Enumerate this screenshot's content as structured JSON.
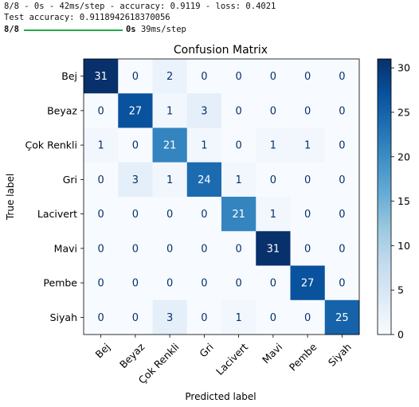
{
  "log": {
    "line1": "8/8 - 0s - 42ms/step - accuracy: 0.9119 - loss: 0.4021",
    "line2": "Test accuracy: 0.9118942618370056",
    "progress_label": "8/8",
    "progress_suffix": "0s 39ms/step",
    "progress_fraction": 1.0,
    "progress_color": "#22aa44"
  },
  "chart_data": {
    "type": "heatmap",
    "title": "Confusion Matrix",
    "xlabel": "Predicted label",
    "ylabel": "True label",
    "labels": [
      "Bej",
      "Beyaz",
      "Çok Renkli",
      "Gri",
      "Lacivert",
      "Mavi",
      "Pembe",
      "Siyah"
    ],
    "matrix": [
      [
        31,
        0,
        2,
        0,
        0,
        0,
        0,
        0
      ],
      [
        0,
        27,
        1,
        3,
        0,
        0,
        0,
        0
      ],
      [
        1,
        0,
        21,
        1,
        0,
        1,
        1,
        0
      ],
      [
        0,
        3,
        1,
        24,
        1,
        0,
        0,
        0
      ],
      [
        0,
        0,
        0,
        0,
        21,
        1,
        0,
        0
      ],
      [
        0,
        0,
        0,
        0,
        0,
        31,
        0,
        0
      ],
      [
        0,
        0,
        0,
        0,
        0,
        0,
        27,
        0
      ],
      [
        0,
        0,
        3,
        0,
        1,
        0,
        0,
        25
      ]
    ],
    "colormap": "Blues",
    "value_range": [
      0,
      31
    ],
    "colorbar_ticks": [
      0,
      5,
      10,
      15,
      20,
      25,
      30
    ]
  }
}
